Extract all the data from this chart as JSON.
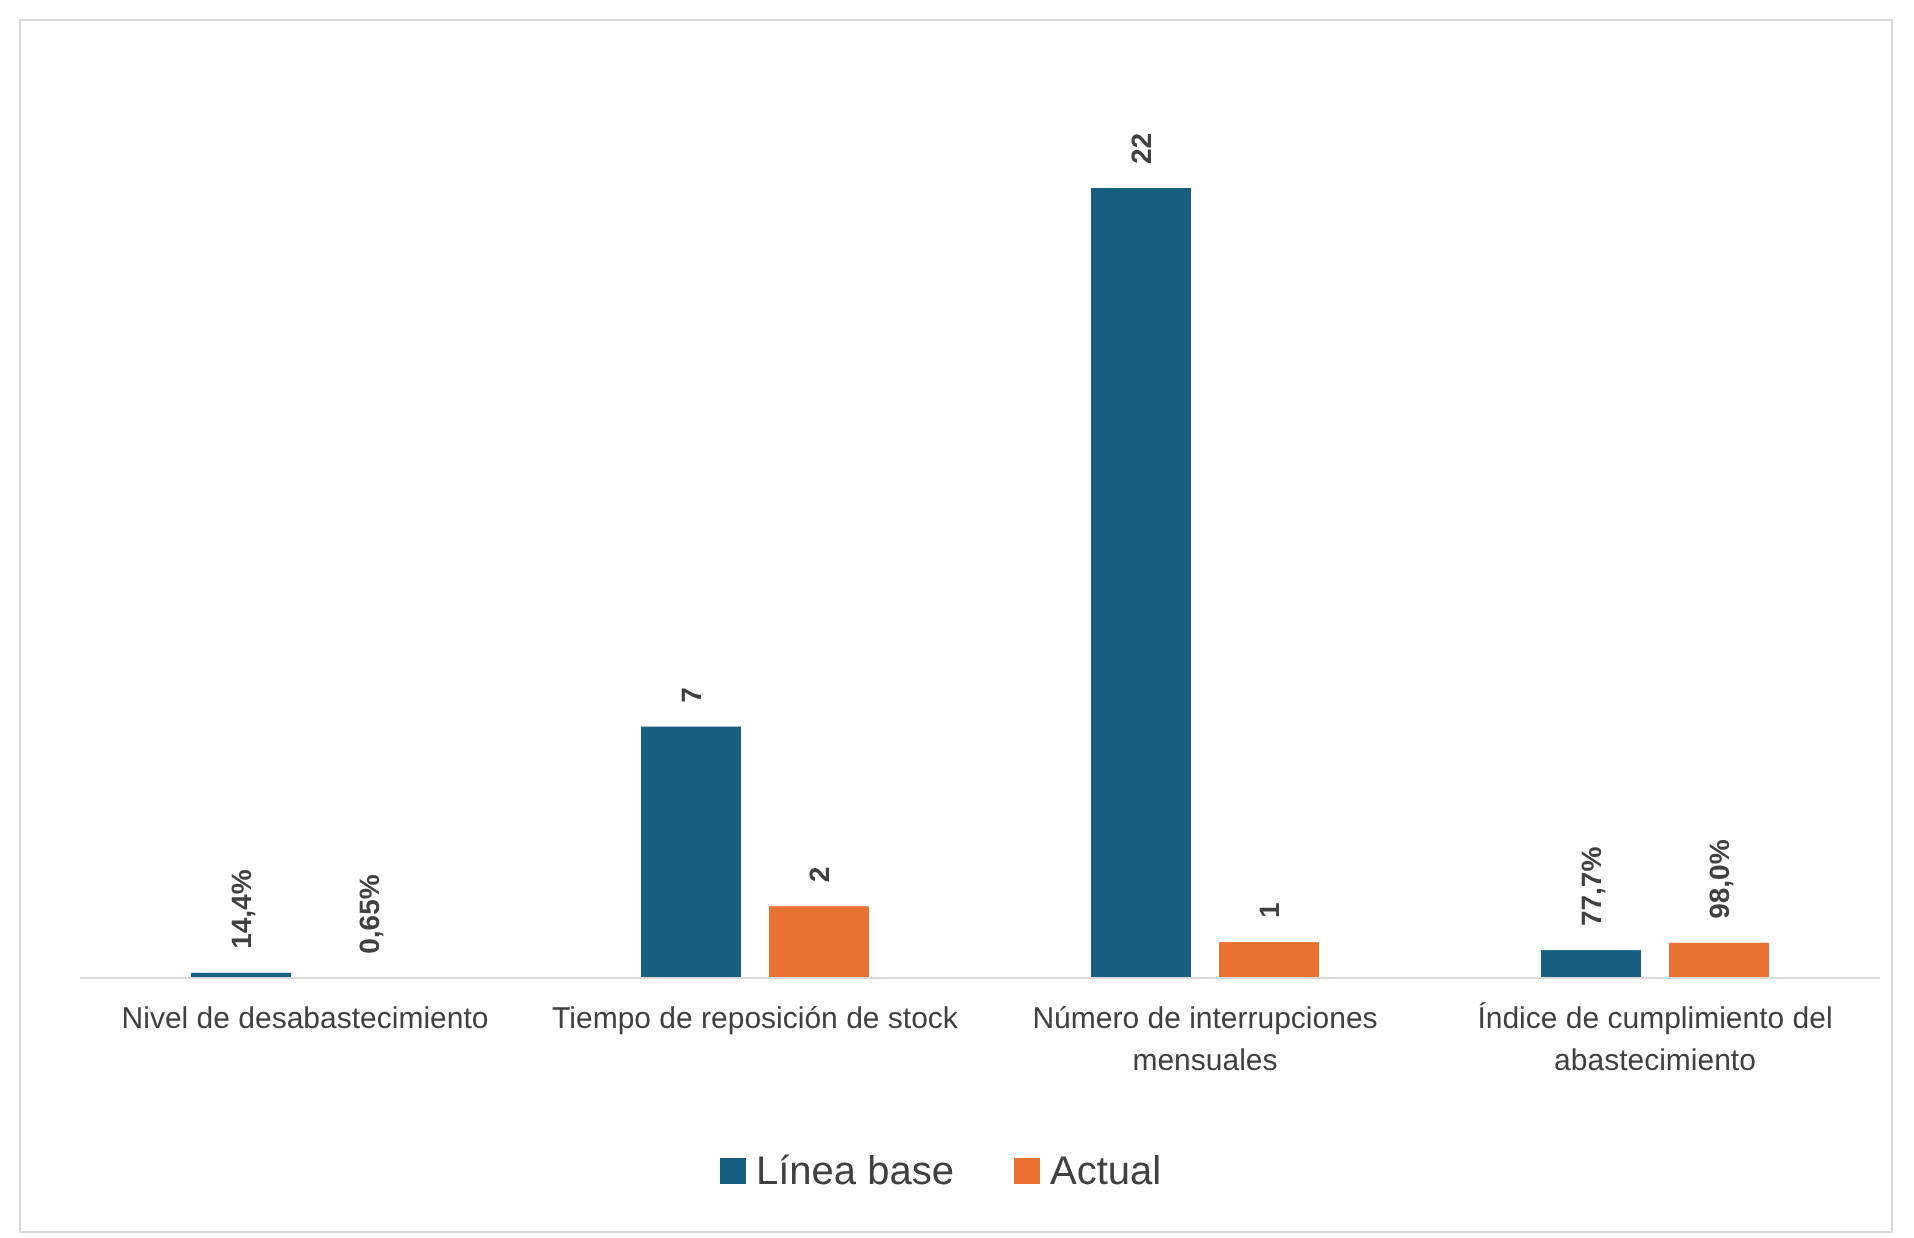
{
  "chart_data": {
    "type": "bar",
    "categories": [
      "Nivel de desabastecimiento",
      "Tiempo de reposición de stock",
      "Número de interrupciones mensuales",
      "Índice de cumplimiento del abastecimiento"
    ],
    "series": [
      {
        "name": "Línea base",
        "color": "#175e7f",
        "values": [
          0.144,
          7,
          22,
          0.777
        ],
        "value_labels": [
          "14,4%",
          "7",
          "22",
          "77,7%"
        ]
      },
      {
        "name": "Actual",
        "color": "#e97132",
        "values": [
          0.0065,
          2,
          1,
          0.98
        ],
        "value_labels": [
          "0,65%",
          "2",
          "1",
          "98,0%"
        ]
      }
    ],
    "tick_labels": "x",
    "grid": false,
    "legend": "bottom"
  }
}
